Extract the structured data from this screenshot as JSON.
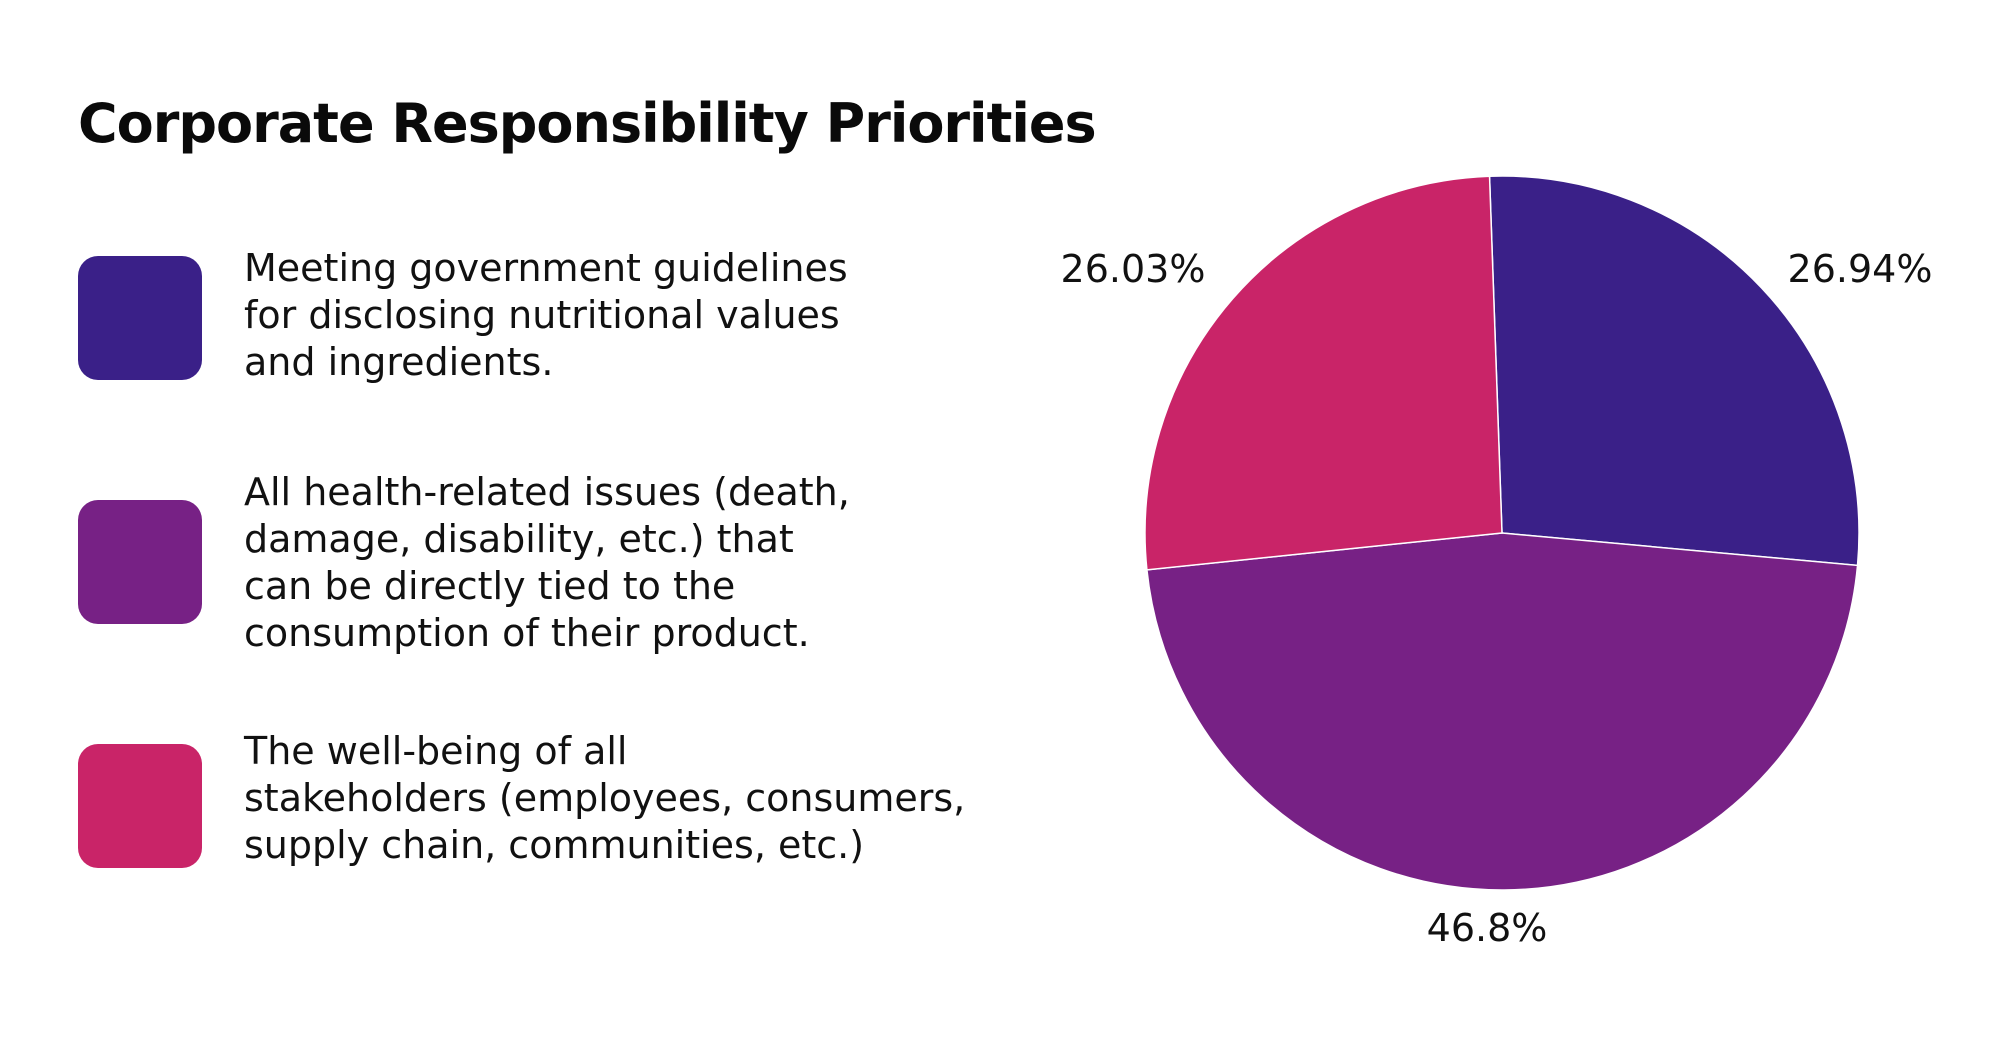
{
  "chart_data": {
    "type": "pie",
    "title": "Corporate Responsibility Priorities",
    "slices": [
      {
        "label": "Meeting government guidelines\nfor disclosing nutritional values\nand ingredients.",
        "value": 26.94,
        "value_label": "26.94%",
        "color": "#3a2088"
      },
      {
        "label": "All health-related issues (death,\ndamage, disability, etc.) that\ncan be directly tied to the\nconsumption of their product.",
        "value": 46.8,
        "value_label": "46.8%",
        "color": "#772185"
      },
      {
        "label": "The well-being of all\nstakeholders (employees, consumers,\nsupply chain, communities, etc.)",
        "value": 26.03,
        "value_label": "26.03%",
        "color": "#c92468"
      }
    ],
    "start_angle_deg": -2,
    "direction": "clockwise",
    "legend_position": "left"
  }
}
